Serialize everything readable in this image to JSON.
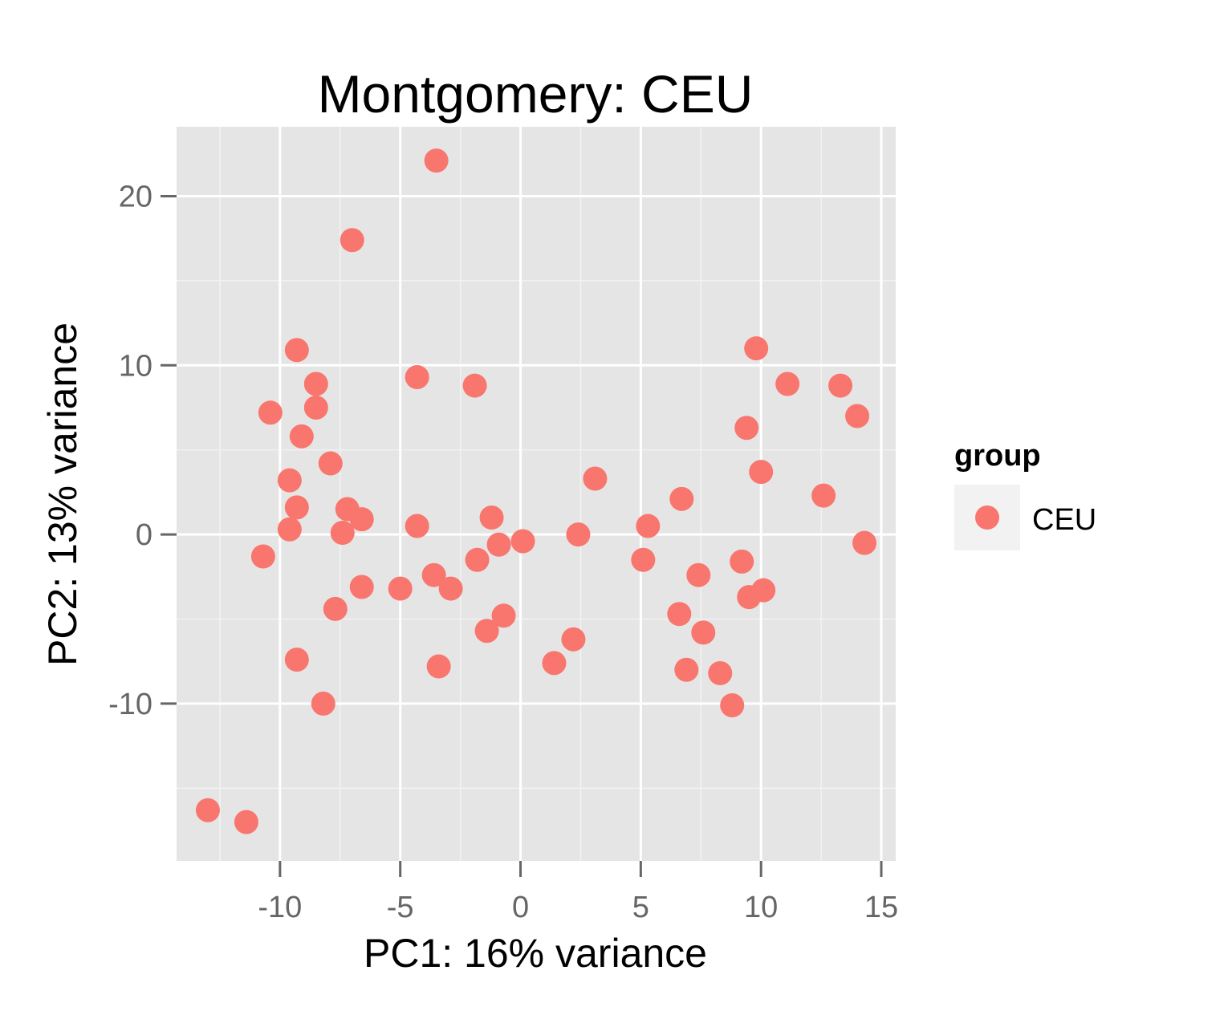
{
  "chart_data": {
    "type": "scatter",
    "title": "Montgomery: CEU",
    "xlabel": "PC1: 16% variance",
    "ylabel": "PC2: 13% variance",
    "xlim": [
      -14.3,
      15.6
    ],
    "ylim": [
      -19.3,
      24.1
    ],
    "x_ticks": [
      -10,
      -5,
      0,
      5,
      10,
      15
    ],
    "x_tick_labels": [
      "-10",
      "-5",
      "0",
      "5",
      "10",
      "15"
    ],
    "y_ticks": [
      -10,
      0,
      10,
      20
    ],
    "y_tick_labels": [
      "-10",
      "0",
      "10",
      "20"
    ],
    "grid": true,
    "legend": {
      "title": "group",
      "position": "right",
      "entries": [
        {
          "label": "CEU",
          "color": "#F8766D"
        }
      ]
    },
    "colors": {
      "panel": "#E5E5E5",
      "grid": "#FFFFFF",
      "point": "#F8766D",
      "tick": "#666666"
    },
    "series": [
      {
        "name": "CEU",
        "points": [
          [
            -3.5,
            22.1
          ],
          [
            -7.0,
            17.4
          ],
          [
            -9.3,
            10.9
          ],
          [
            -8.5,
            8.9
          ],
          [
            -8.5,
            7.5
          ],
          [
            -10.4,
            7.2
          ],
          [
            -9.1,
            5.8
          ],
          [
            -7.9,
            4.2
          ],
          [
            -9.6,
            3.2
          ],
          [
            -9.3,
            1.6
          ],
          [
            -9.6,
            0.3
          ],
          [
            -7.2,
            1.5
          ],
          [
            -6.6,
            0.9
          ],
          [
            -7.4,
            0.1
          ],
          [
            -10.7,
            -1.3
          ],
          [
            -7.7,
            -4.4
          ],
          [
            -6.6,
            -3.1
          ],
          [
            -9.3,
            -7.4
          ],
          [
            -8.2,
            -10.0
          ],
          [
            -13.0,
            -16.3
          ],
          [
            -11.4,
            -17.0
          ],
          [
            -4.3,
            9.3
          ],
          [
            -4.3,
            0.5
          ],
          [
            -5.0,
            -3.2
          ],
          [
            -3.6,
            -2.4
          ],
          [
            -2.9,
            -3.2
          ],
          [
            -3.4,
            -7.8
          ],
          [
            -1.9,
            8.8
          ],
          [
            -1.8,
            -1.5
          ],
          [
            -1.2,
            1.0
          ],
          [
            -0.9,
            -0.6
          ],
          [
            -0.7,
            -4.8
          ],
          [
            -1.4,
            -5.7
          ],
          [
            0.1,
            -0.4
          ],
          [
            1.4,
            -7.6
          ],
          [
            2.4,
            0.0
          ],
          [
            2.2,
            -6.2
          ],
          [
            3.1,
            3.3
          ],
          [
            5.3,
            0.5
          ],
          [
            5.1,
            -1.5
          ],
          [
            6.7,
            2.1
          ],
          [
            6.6,
            -4.7
          ],
          [
            6.9,
            -8.0
          ],
          [
            7.4,
            -2.4
          ],
          [
            7.6,
            -5.8
          ],
          [
            8.3,
            -8.2
          ],
          [
            8.8,
            -10.1
          ],
          [
            9.2,
            -1.6
          ],
          [
            9.5,
            -3.7
          ],
          [
            10.1,
            -3.3
          ],
          [
            9.4,
            6.3
          ],
          [
            9.8,
            11.0
          ],
          [
            10.0,
            3.7
          ],
          [
            11.1,
            8.9
          ],
          [
            12.6,
            2.3
          ],
          [
            13.3,
            8.8
          ],
          [
            14.0,
            7.0
          ],
          [
            14.3,
            -0.5
          ]
        ]
      }
    ]
  }
}
